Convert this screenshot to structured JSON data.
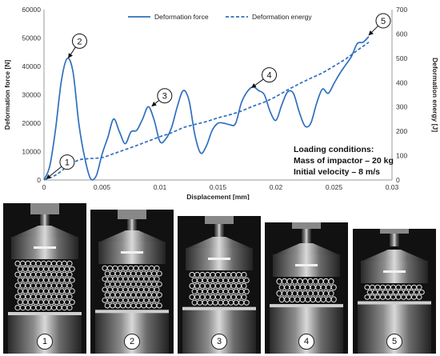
{
  "chart_data": {
    "type": "line",
    "xlabel": "Displacement [mm]",
    "ylabel_left": "Deformation force [N]",
    "ylabel_right": "Deformation energy [J]",
    "xlim": [
      0,
      0.03
    ],
    "ylim_left": [
      0,
      60000
    ],
    "ylim_right": [
      0,
      700
    ],
    "x_ticks": [
      "0",
      "0.005",
      "0.01",
      "0.015",
      "0.02",
      "0.025",
      "0.03"
    ],
    "y_left_ticks": [
      "0",
      "10000",
      "20000",
      "30000",
      "40000",
      "50000",
      "60000"
    ],
    "y_right_ticks": [
      "0",
      "100",
      "200",
      "300",
      "400",
      "500",
      "600",
      "700"
    ],
    "legend_position": "top",
    "series": [
      {
        "name": "Deformation force",
        "axis": "left",
        "style": "solid",
        "color": "#2f6fbf",
        "points": [
          [
            0,
            0
          ],
          [
            0.0005,
            5000
          ],
          [
            0.001,
            18000
          ],
          [
            0.0015,
            35000
          ],
          [
            0.002,
            42800
          ],
          [
            0.0025,
            38000
          ],
          [
            0.003,
            20000
          ],
          [
            0.0035,
            8000
          ],
          [
            0.004,
            600
          ],
          [
            0.0045,
            1500
          ],
          [
            0.005,
            9000
          ],
          [
            0.0055,
            15000
          ],
          [
            0.006,
            21500
          ],
          [
            0.0065,
            17000
          ],
          [
            0.007,
            12800
          ],
          [
            0.0075,
            17000
          ],
          [
            0.008,
            17500
          ],
          [
            0.0085,
            21500
          ],
          [
            0.009,
            25800
          ],
          [
            0.0095,
            21000
          ],
          [
            0.01,
            13500
          ],
          [
            0.0105,
            14500
          ],
          [
            0.011,
            18500
          ],
          [
            0.0115,
            26000
          ],
          [
            0.012,
            31500
          ],
          [
            0.0125,
            28000
          ],
          [
            0.013,
            16000
          ],
          [
            0.0135,
            9500
          ],
          [
            0.014,
            12000
          ],
          [
            0.0145,
            17500
          ],
          [
            0.015,
            20000
          ],
          [
            0.0155,
            20000
          ],
          [
            0.016,
            19500
          ],
          [
            0.0165,
            19800
          ],
          [
            0.017,
            27000
          ],
          [
            0.0175,
            31000
          ],
          [
            0.018,
            32800
          ],
          [
            0.0185,
            31500
          ],
          [
            0.019,
            30000
          ],
          [
            0.0195,
            24000
          ],
          [
            0.02,
            21000
          ],
          [
            0.0205,
            26500
          ],
          [
            0.021,
            31000
          ],
          [
            0.0215,
            30500
          ],
          [
            0.022,
            24000
          ],
          [
            0.0225,
            19000
          ],
          [
            0.023,
            20000
          ],
          [
            0.0235,
            27000
          ],
          [
            0.024,
            32000
          ],
          [
            0.0245,
            30500
          ],
          [
            0.025,
            34000
          ],
          [
            0.0255,
            37500
          ],
          [
            0.026,
            40500
          ],
          [
            0.0265,
            43500
          ],
          [
            0.027,
            48000
          ],
          [
            0.0275,
            48500
          ],
          [
            0.028,
            50500
          ]
        ]
      },
      {
        "name": "Deformation energy",
        "axis": "right",
        "style": "dashed",
        "color": "#2f6fbf",
        "points": [
          [
            0,
            0
          ],
          [
            0.001,
            20
          ],
          [
            0.002,
            55
          ],
          [
            0.003,
            82
          ],
          [
            0.004,
            88
          ],
          [
            0.005,
            92
          ],
          [
            0.006,
            108
          ],
          [
            0.007,
            125
          ],
          [
            0.008,
            142
          ],
          [
            0.009,
            160
          ],
          [
            0.01,
            178
          ],
          [
            0.011,
            194
          ],
          [
            0.012,
            215
          ],
          [
            0.013,
            228
          ],
          [
            0.014,
            240
          ],
          [
            0.015,
            255
          ],
          [
            0.016,
            268
          ],
          [
            0.017,
            283
          ],
          [
            0.018,
            303
          ],
          [
            0.019,
            320
          ],
          [
            0.02,
            343
          ],
          [
            0.021,
            370
          ],
          [
            0.022,
            395
          ],
          [
            0.023,
            418
          ],
          [
            0.024,
            440
          ],
          [
            0.025,
            468
          ],
          [
            0.026,
            497
          ],
          [
            0.027,
            532
          ],
          [
            0.028,
            566
          ]
        ]
      }
    ],
    "annotations": [
      {
        "label": "1",
        "x": 0.0002,
        "y": 400
      },
      {
        "label": "2",
        "x": 0.0021,
        "y": 43000
      },
      {
        "label": "3",
        "x": 0.0093,
        "y": 26000
      },
      {
        "label": "4",
        "x": 0.0179,
        "y": 32500
      },
      {
        "label": "5",
        "x": 0.028,
        "y": 51000
      }
    ],
    "text_box": [
      "Loading conditions:",
      "Mass of impactor – 20 kg",
      "Initial velocity – 8 m/s"
    ]
  },
  "photos": {
    "labels": [
      "1",
      "2",
      "3",
      "4",
      "5"
    ],
    "crush_levels": [
      0.0,
      0.15,
      0.35,
      0.55,
      0.75
    ]
  }
}
